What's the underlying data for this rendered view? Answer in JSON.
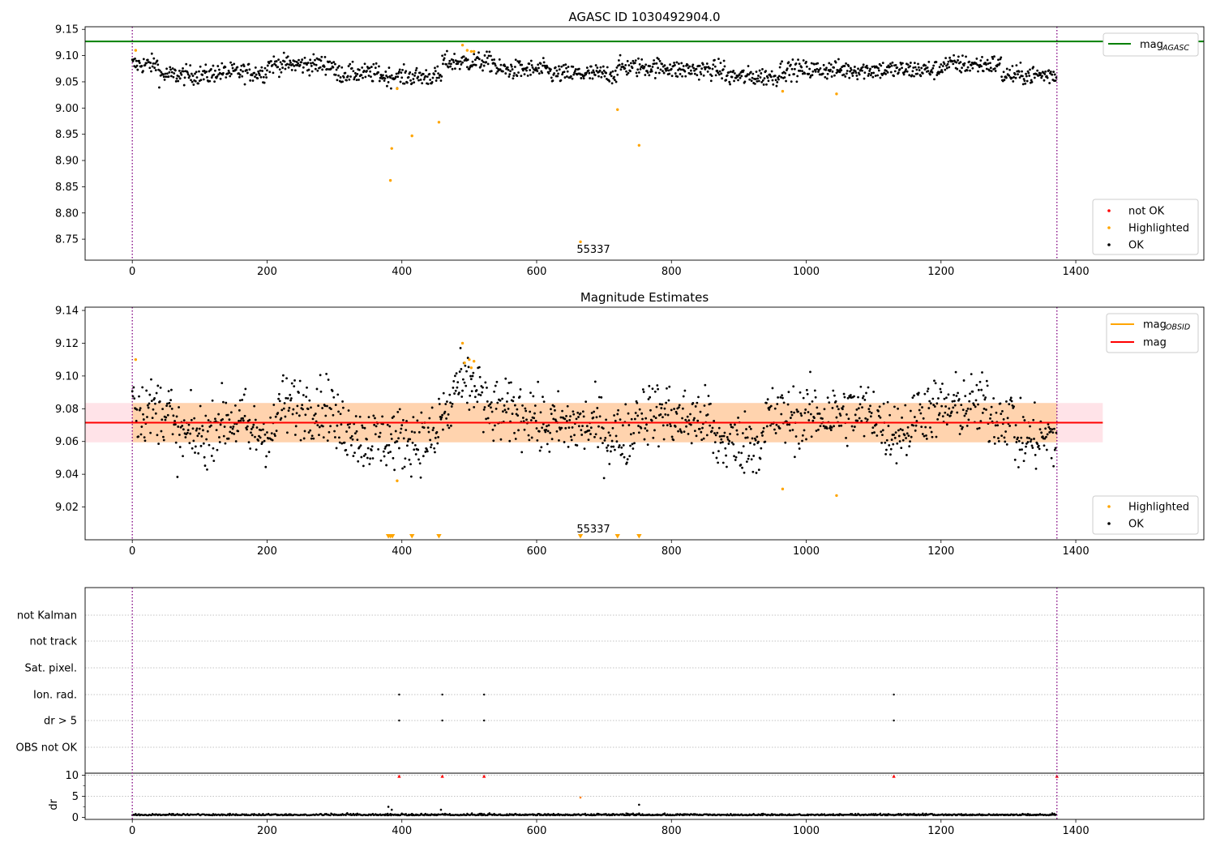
{
  "chart_data": [
    {
      "type": "scatter",
      "title": "AGASC ID 1030492904.0",
      "xlim": [
        -70,
        1590
      ],
      "ylim": [
        8.71,
        9.155
      ],
      "xticks": [
        0,
        200,
        400,
        600,
        800,
        1000,
        1200,
        1400
      ],
      "yticks": [
        "8.75",
        "8.80",
        "8.85",
        "8.90",
        "8.95",
        "9.00",
        "9.05",
        "9.10",
        "9.15"
      ],
      "mag_agasc": 9.127,
      "obs_boundaries": [
        0,
        1372
      ],
      "annotation": {
        "text": "55337",
        "x": 665
      },
      "legend_top": [
        {
          "label": "mag",
          "sub": "AGASC",
          "color": "#008000"
        }
      ],
      "legend_bottom": [
        {
          "label": "not OK",
          "color": "#ff0000"
        },
        {
          "label": "Highlighted",
          "color": "#ffa500"
        },
        {
          "label": "OK",
          "color": "#000000"
        }
      ],
      "ok_points": {
        "x_range": [
          0,
          1372
        ],
        "n": 1372,
        "description": "dense band ~9.05–9.10"
      },
      "highlighted": [
        [
          5,
          9.11
        ],
        [
          383,
          8.862
        ],
        [
          385,
          8.923
        ],
        [
          393,
          9.037
        ],
        [
          415,
          8.947
        ],
        [
          455,
          8.973
        ],
        [
          490,
          9.12
        ],
        [
          497,
          9.11
        ],
        [
          503,
          9.108
        ],
        [
          507,
          9.108
        ],
        [
          665,
          8.745
        ],
        [
          720,
          8.997
        ],
        [
          752,
          8.929
        ],
        [
          965,
          9.032
        ],
        [
          1045,
          9.027
        ]
      ]
    },
    {
      "type": "scatter",
      "title": "Magnitude Estimates",
      "xlim": [
        -70,
        1590
      ],
      "ylim": [
        9.0,
        9.142
      ],
      "xticks": [
        0,
        200,
        400,
        600,
        800,
        1000,
        1200,
        1400
      ],
      "yticks": [
        "9.02",
        "9.04",
        "9.06",
        "9.08",
        "9.10",
        "9.12",
        "9.14"
      ],
      "mag": 9.0715,
      "band_outer": [
        9.0595,
        9.0835
      ],
      "band_x": [
        -70,
        1440
      ],
      "obs_boundaries": [
        0,
        1372
      ],
      "annotation": {
        "text": "55337",
        "x": 665
      },
      "legend_top": [
        {
          "label": "mag",
          "sub": "OBSID",
          "color": "#ffa500"
        },
        {
          "label": "mag",
          "sub": "",
          "color": "#ff0000"
        }
      ],
      "legend_bottom": [
        {
          "label": "Highlighted",
          "color": "#ffa500"
        },
        {
          "label": "OK",
          "color": "#000000"
        }
      ],
      "highlighted": [
        [
          5,
          9.11
        ],
        [
          393,
          9.036
        ],
        [
          490,
          9.12
        ],
        [
          493,
          9.108
        ],
        [
          500,
          9.11
        ],
        [
          503,
          9.105
        ],
        [
          507,
          9.109
        ],
        [
          965,
          9.031
        ],
        [
          1045,
          9.027
        ]
      ],
      "below_range_markers": [
        380,
        383,
        386,
        415,
        455,
        665,
        720,
        752
      ],
      "segment_offsets": [
        [
          0,
          5,
          0.018
        ],
        [
          5,
          60,
          0.008
        ],
        [
          60,
          120,
          -0.008
        ],
        [
          120,
          170,
          0.001
        ],
        [
          170,
          215,
          -0.006
        ],
        [
          215,
          300,
          0.01
        ],
        [
          300,
          335,
          -0.003
        ],
        [
          335,
          395,
          -0.01
        ],
        [
          395,
          455,
          -0.01
        ],
        [
          455,
          475,
          0.005
        ],
        [
          475,
          520,
          0.022
        ],
        [
          520,
          600,
          0.006
        ],
        [
          600,
          700,
          -0.002
        ],
        [
          700,
          745,
          -0.008
        ],
        [
          745,
          800,
          0.006
        ],
        [
          800,
          860,
          0.002
        ],
        [
          860,
          940,
          -0.012
        ],
        [
          940,
          1000,
          0.003
        ],
        [
          1000,
          1060,
          0.005
        ],
        [
          1060,
          1110,
          0.006
        ],
        [
          1110,
          1160,
          -0.004
        ],
        [
          1160,
          1220,
          0.008
        ],
        [
          1220,
          1270,
          0.01
        ],
        [
          1270,
          1310,
          0.004
        ],
        [
          1310,
          1372,
          -0.01
        ]
      ]
    },
    {
      "type": "scatter",
      "title": "",
      "xlim": [
        -70,
        1590
      ],
      "xticks": [
        0,
        200,
        400,
        600,
        800,
        1000,
        1200,
        1400
      ],
      "flag_rows": [
        "not Kalman",
        "not track",
        "Sat. pixel.",
        "Ion. rad.",
        "dr > 5",
        "OBS not OK"
      ],
      "flag_points": {
        "Ion. rad.": [
          396,
          460,
          522,
          1130
        ],
        "dr > 5": [
          396,
          460,
          522,
          1130
        ]
      },
      "dr": {
        "ylabel": "dr",
        "yticks": [
          0,
          5,
          10
        ],
        "ylim": [
          -0.5,
          10.5
        ],
        "clipped_markers": [
          396,
          460,
          522,
          1130,
          1372
        ],
        "outliers": [
          [
            380,
            2.5
          ],
          [
            385,
            1.8
          ],
          [
            458,
            1.8
          ],
          [
            665,
            4.7
          ],
          [
            752,
            3.0
          ]
        ]
      },
      "obs_boundaries": [
        0,
        1372
      ]
    }
  ]
}
